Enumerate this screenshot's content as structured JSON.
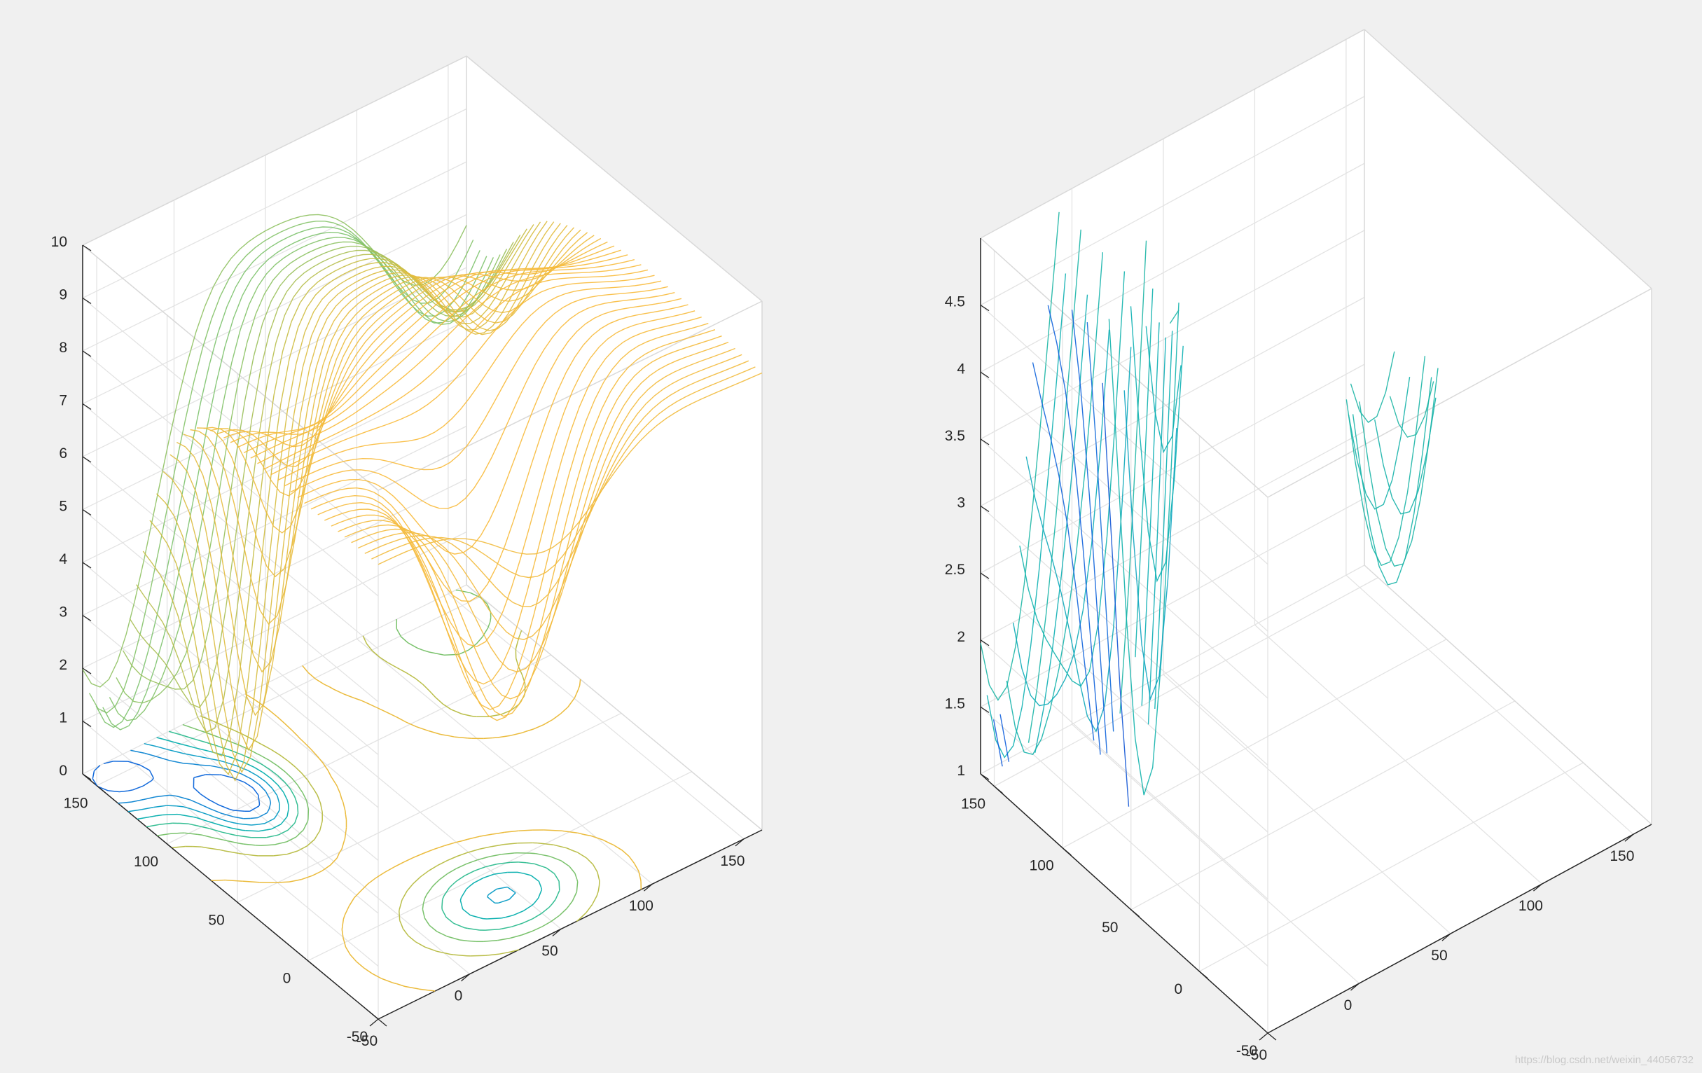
{
  "figure": {
    "background": "#f0f0f0",
    "axes_background": "#ffffff",
    "colormap": "parula",
    "watermark": "https://blog.csdn.net/weixin_44056732"
  },
  "chart_data": [
    {
      "type": "surface",
      "style": "mesh lines with contour lines on the back plane",
      "zdir": "reversed",
      "grid": true,
      "x": {
        "ticks": [
          -50,
          0,
          50,
          100,
          150
        ],
        "labels": [
          "-50",
          "0",
          "50",
          "100",
          "150"
        ],
        "range": [
          -50,
          160
        ]
      },
      "y": {
        "ticks": [
          -50,
          0,
          50,
          100,
          150
        ],
        "labels": [
          "-50",
          "0",
          "50",
          "100",
          "150"
        ],
        "range": [
          -50,
          160
        ]
      },
      "z": {
        "ticks": [
          0,
          1,
          2,
          3,
          4,
          5,
          6,
          7,
          8,
          9,
          10
        ],
        "labels": [
          "0",
          "1",
          "2",
          "3",
          "4",
          "5",
          "6",
          "7",
          "8",
          "9",
          "10"
        ],
        "range": [
          0,
          10
        ]
      }
    },
    {
      "type": "surface",
      "style": "mesh lines clipped to z from 1 to 5",
      "zdir": "reversed",
      "grid": true,
      "x": {
        "ticks": [
          -50,
          0,
          50,
          100,
          150
        ],
        "labels": [
          "-50",
          "0",
          "50",
          "100",
          "150"
        ],
        "range": [
          -50,
          160
        ]
      },
      "y": {
        "ticks": [
          -50,
          0,
          50,
          100,
          150
        ],
        "labels": [
          "-50",
          "0",
          "50",
          "100",
          "150"
        ],
        "range": [
          -50,
          160
        ]
      },
      "z": {
        "ticks": [
          1,
          1.5,
          2,
          2.5,
          3,
          3.5,
          4,
          4.5
        ],
        "labels": [
          "1",
          "1.5",
          "2",
          "2.5",
          "3",
          "3.5",
          "4",
          "4.5"
        ],
        "range": [
          1,
          5
        ]
      }
    }
  ]
}
